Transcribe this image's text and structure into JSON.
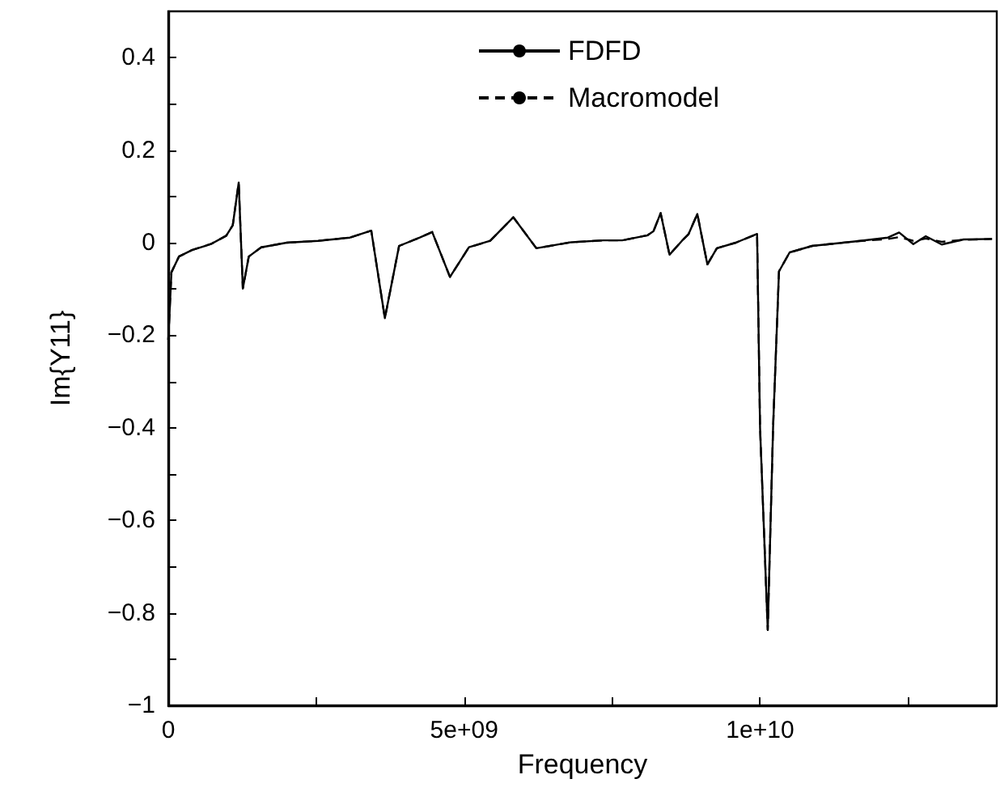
{
  "chart_data": {
    "type": "line",
    "xlabel": "Frequency",
    "ylabel": "Im{Y11}",
    "xlim": [
      0,
      14000000000
    ],
    "ylim": [
      -1,
      0.5
    ],
    "xticks": [
      0,
      {
        "value": 2500000000,
        "label": null
      },
      {
        "value": 5000000000,
        "label": "5e+09"
      },
      {
        "value": 7500000000,
        "label": null
      },
      {
        "value": 10000000000,
        "label": "1e+10"
      },
      {
        "value": 12500000000,
        "label": null
      }
    ],
    "yticks": [
      -1,
      {
        "value": -0.9,
        "label": null
      },
      -0.8,
      {
        "value": -0.7,
        "label": null
      },
      -0.6,
      {
        "value": -0.5,
        "label": null
      },
      -0.4,
      {
        "value": -0.3,
        "label": null
      },
      -0.2,
      {
        "value": -0.1,
        "label": null
      },
      0,
      {
        "value": 0.1,
        "label": null
      },
      0.2,
      {
        "value": 0.3,
        "label": null
      },
      0.4
    ],
    "grid": false,
    "legend": "top",
    "marker": "none",
    "x": [
      0,
      53000000,
      180000000,
      400000000,
      720000000,
      980000000,
      1090000000,
      1190000000,
      1260000000,
      1360000000,
      1570000000,
      2000000000,
      2530000000,
      3070000000,
      3430000000,
      3660000000,
      3900000000,
      4250000000,
      4460000000,
      4760000000,
      5080000000,
      5440000000,
      5830000000,
      6220000000,
      6810000000,
      7350000000,
      7670000000,
      8100000000,
      8200000000,
      8320000000,
      8470000000,
      8680000000,
      8790000000,
      8940000000,
      9110000000,
      9270000000,
      9590000000,
      9950000000,
      10000000000,
      10130000000,
      10220000000,
      10320000000,
      10500000000,
      10880000000,
      11630000000,
      12160000000,
      12350000000,
      12590000000,
      12800000000,
      13070000000,
      13440000000,
      13920000000
    ],
    "series": [
      {
        "name": "FDFD",
        "color": "#000000",
        "line_style": "solid",
        "values": [
          -0.21,
          -0.064,
          -0.03,
          -0.016,
          -0.003,
          0.015,
          0.038,
          0.13,
          -0.099,
          -0.03,
          -0.01,
          0.0,
          0.004,
          0.011,
          0.026,
          -0.163,
          -0.007,
          0.011,
          0.023,
          -0.074,
          -0.01,
          0.004,
          0.055,
          -0.012,
          0.001,
          0.005,
          0.005,
          0.016,
          0.025,
          0.064,
          -0.026,
          0.004,
          0.018,
          0.062,
          -0.047,
          -0.012,
          0.0,
          0.019,
          -0.4,
          -0.837,
          -0.4,
          -0.062,
          -0.021,
          -0.007,
          0.003,
          0.011,
          0.022,
          -0.003,
          0.014,
          -0.004,
          0.007,
          0.008
        ]
      },
      {
        "name": "Macromodel",
        "color": "#000000",
        "line_style": "dashed",
        "values": [
          -0.21,
          -0.064,
          -0.03,
          -0.016,
          -0.003,
          0.015,
          0.038,
          0.13,
          -0.099,
          -0.03,
          -0.01,
          0.0,
          0.004,
          0.011,
          0.026,
          -0.163,
          -0.007,
          0.011,
          0.023,
          -0.074,
          -0.01,
          0.004,
          0.055,
          -0.012,
          0.001,
          0.005,
          0.005,
          0.016,
          0.025,
          0.064,
          -0.026,
          0.004,
          0.018,
          0.062,
          -0.047,
          -0.012,
          0.0,
          0.019,
          -0.4,
          -0.837,
          -0.4,
          -0.062,
          -0.021,
          -0.007,
          0.003,
          0.008,
          0.012,
          0.004,
          0.009,
          0.002,
          0.006,
          0.008
        ]
      }
    ]
  }
}
